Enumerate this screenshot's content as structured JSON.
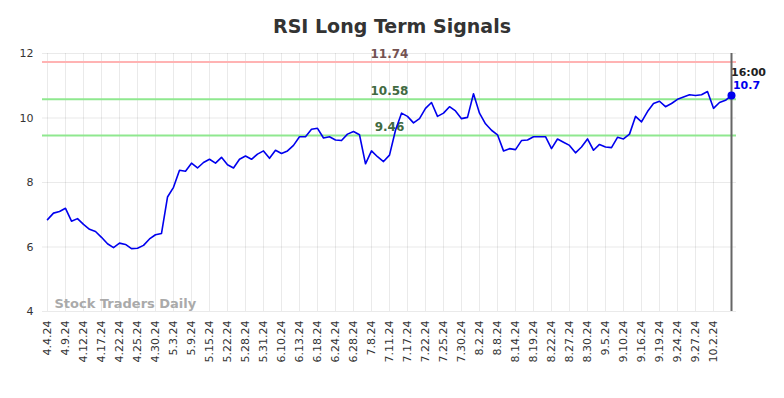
{
  "chart_data": {
    "type": "line",
    "title": "RSI Long Term Signals",
    "categories": [
      "4.4.24",
      null,
      null,
      "4.9.24",
      null,
      null,
      "4.12.24",
      null,
      null,
      "4.17.24",
      null,
      null,
      "4.22.24",
      null,
      null,
      "4.25.24",
      null,
      null,
      "4.30.24",
      null,
      null,
      "5.3.24",
      null,
      null,
      "5.9.24",
      null,
      null,
      "5.15.24",
      null,
      null,
      "5.22.24",
      null,
      null,
      "5.28.24",
      null,
      null,
      "5.31.24",
      null,
      null,
      "6.10.24",
      null,
      null,
      "6.13.24",
      null,
      null,
      "6.18.24",
      null,
      null,
      "6.24.24",
      null,
      null,
      "6.28.24",
      null,
      null,
      "7.8.24",
      null,
      null,
      "7.11.24",
      null,
      null,
      "7.17.24",
      null,
      null,
      "7.22.24",
      null,
      null,
      "7.25.24",
      null,
      null,
      "7.30.24",
      null,
      null,
      "8.2.24",
      null,
      null,
      "8.8.24",
      null,
      null,
      "8.14.24",
      null,
      null,
      "8.19.24",
      null,
      null,
      "8.22.24",
      null,
      null,
      "8.27.24",
      null,
      null,
      "8.30.24",
      null,
      null,
      "9.5.24",
      null,
      null,
      "9.10.24",
      null,
      null,
      "9.16.24",
      null,
      null,
      "9.19.24",
      null,
      null,
      "9.24.24",
      null,
      null,
      "9.27.24",
      null,
      null,
      "10.2.24",
      null,
      null,
      null
    ],
    "values": [
      6.85,
      7.05,
      7.1,
      7.2,
      6.8,
      6.88,
      6.7,
      6.55,
      6.48,
      6.3,
      6.1,
      5.98,
      6.12,
      6.08,
      5.95,
      5.96,
      6.05,
      6.25,
      6.38,
      6.42,
      7.55,
      7.85,
      8.38,
      8.35,
      8.6,
      8.45,
      8.62,
      8.72,
      8.6,
      8.78,
      8.55,
      8.45,
      8.72,
      8.82,
      8.72,
      8.88,
      8.98,
      8.75,
      9.0,
      8.9,
      8.98,
      9.15,
      9.42,
      9.42,
      9.65,
      9.68,
      9.38,
      9.42,
      9.32,
      9.3,
      9.5,
      9.58,
      9.48,
      8.58,
      8.98,
      8.8,
      8.65,
      8.85,
      9.62,
      10.15,
      10.05,
      9.85,
      9.98,
      10.3,
      10.48,
      10.05,
      10.15,
      10.35,
      10.22,
      9.98,
      10.02,
      10.75,
      10.15,
      9.82,
      9.62,
      9.48,
      8.98,
      9.05,
      9.02,
      9.3,
      9.32,
      9.42,
      9.42,
      9.42,
      9.05,
      9.35,
      9.25,
      9.15,
      8.92,
      9.1,
      9.35,
      9.0,
      9.18,
      9.1,
      9.08,
      9.4,
      9.35,
      9.5,
      10.05,
      9.88,
      10.2,
      10.45,
      10.52,
      10.35,
      10.45,
      10.58,
      10.65,
      10.72,
      10.7,
      10.72,
      10.82,
      10.3,
      10.48,
      10.55,
      10.7
    ],
    "color": "#0000ee",
    "ylim": [
      4,
      12
    ],
    "yticks": [
      4,
      6,
      8,
      10,
      12
    ],
    "grid": true,
    "reference_lines": [
      {
        "value": 11.74,
        "label": "11.74",
        "color": "#ffb3b3"
      },
      {
        "value": 10.58,
        "label": "10.58",
        "color": "#8fe88f"
      },
      {
        "value": 9.46,
        "label": "9.46",
        "color": "#8fe88f"
      }
    ],
    "time_label": "16:00",
    "watermark": "Stock Traders Daily"
  }
}
